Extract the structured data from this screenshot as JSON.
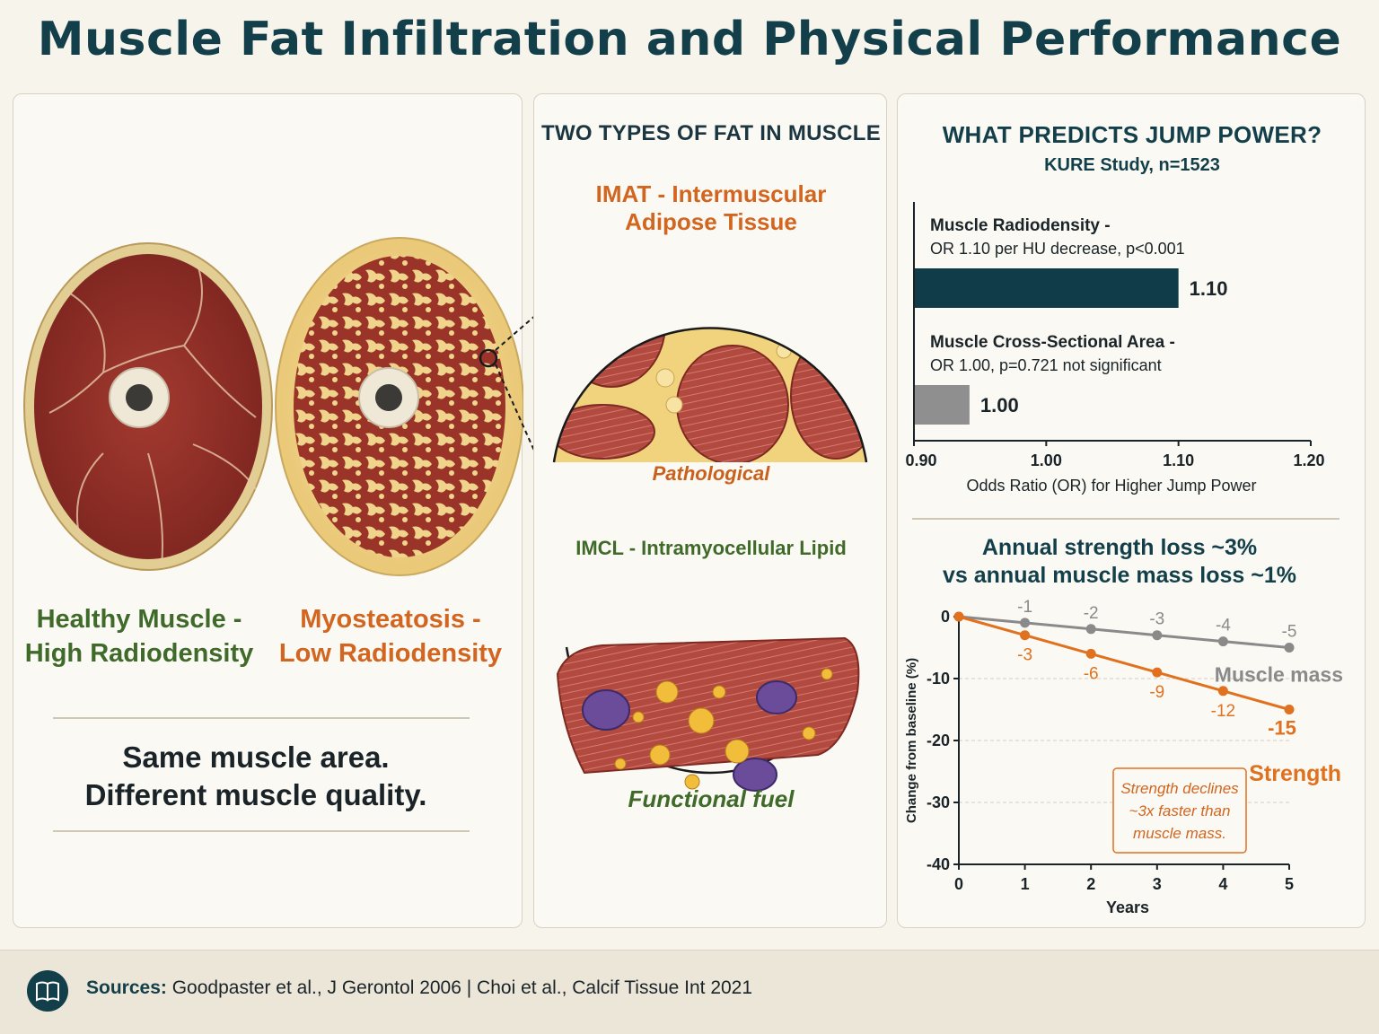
{
  "title": "Muscle Fat Infiltration and Physical Performance",
  "left": {
    "healthy_line1": "Healthy Muscle -",
    "healthy_line2": "High Radiodensity",
    "myo_line1": "Myosteatosis -",
    "myo_line2": "Low Radiodensity",
    "quality_line1": "Same muscle area.",
    "quality_line2": "Different muscle quality."
  },
  "middle": {
    "heading": "TWO TYPES OF FAT IN MUSCLE",
    "imat_line1": "IMAT - Intermuscular",
    "imat_line2": "Adipose Tissue",
    "imat_caption": "Pathological",
    "imcl_label": "IMCL - Intramyocellular Lipid",
    "imcl_caption": "Functional fuel"
  },
  "right": {
    "heading": "WHAT PREDICTS JUMP POWER?",
    "subheading": "KURE Study, n=1523",
    "line_title_1": "Annual strength loss ~3%",
    "line_title_2": "vs annual muscle mass loss ~1%",
    "callout_1": "Strength declines",
    "callout_2": "~3x faster than",
    "callout_3": "muscle mass."
  },
  "chart_data": [
    {
      "type": "bar",
      "orientation": "horizontal",
      "categories": [
        "Muscle Radiodensity -",
        "Muscle Cross-Sectional Area -"
      ],
      "descriptions": [
        "OR 1.10 per HU decrease, p<0.001",
        "OR 1.00, p=0.721 not significant"
      ],
      "values": [
        1.1,
        1.0
      ],
      "value_labels": [
        "1.10",
        "1.00"
      ],
      "colors": [
        "#0f3c48",
        "#8f8f8f"
      ],
      "xlim": [
        0.9,
        1.2
      ],
      "xticks": [
        "0.90",
        "1.00",
        "1.10",
        "1.20"
      ],
      "xlabel": "Odds Ratio (OR) for Higher Jump Power"
    },
    {
      "type": "line",
      "x": [
        0,
        1,
        2,
        3,
        4,
        5
      ],
      "xticks": [
        "0",
        "1",
        "2",
        "3",
        "4",
        "5"
      ],
      "yticks": [
        "0",
        "-10",
        "-20",
        "-30",
        "-40"
      ],
      "ylim": [
        -40,
        0
      ],
      "xlabel": "Years",
      "ylabel": "Change from baseline (%)",
      "series": [
        {
          "name": "Muscle mass",
          "values": [
            0,
            -1,
            -2,
            -3,
            -4,
            -5
          ],
          "labels": [
            "",
            "-1",
            "-2",
            "-3",
            "-4",
            "-5"
          ],
          "color": "#8a8a8a"
        },
        {
          "name": "Strength",
          "values": [
            0,
            -3,
            -6,
            -9,
            -12,
            -15
          ],
          "labels": [
            "",
            "-3",
            "-6",
            "-9",
            "-12",
            "-15"
          ],
          "color": "#e0711f"
        }
      ]
    }
  ],
  "footer": {
    "sources_label": "Sources:",
    "sources_text": "Goodpaster et al., J Gerontol 2006 | Choi et al., Calcif Tissue Int 2021",
    "icon": "book-icon"
  }
}
